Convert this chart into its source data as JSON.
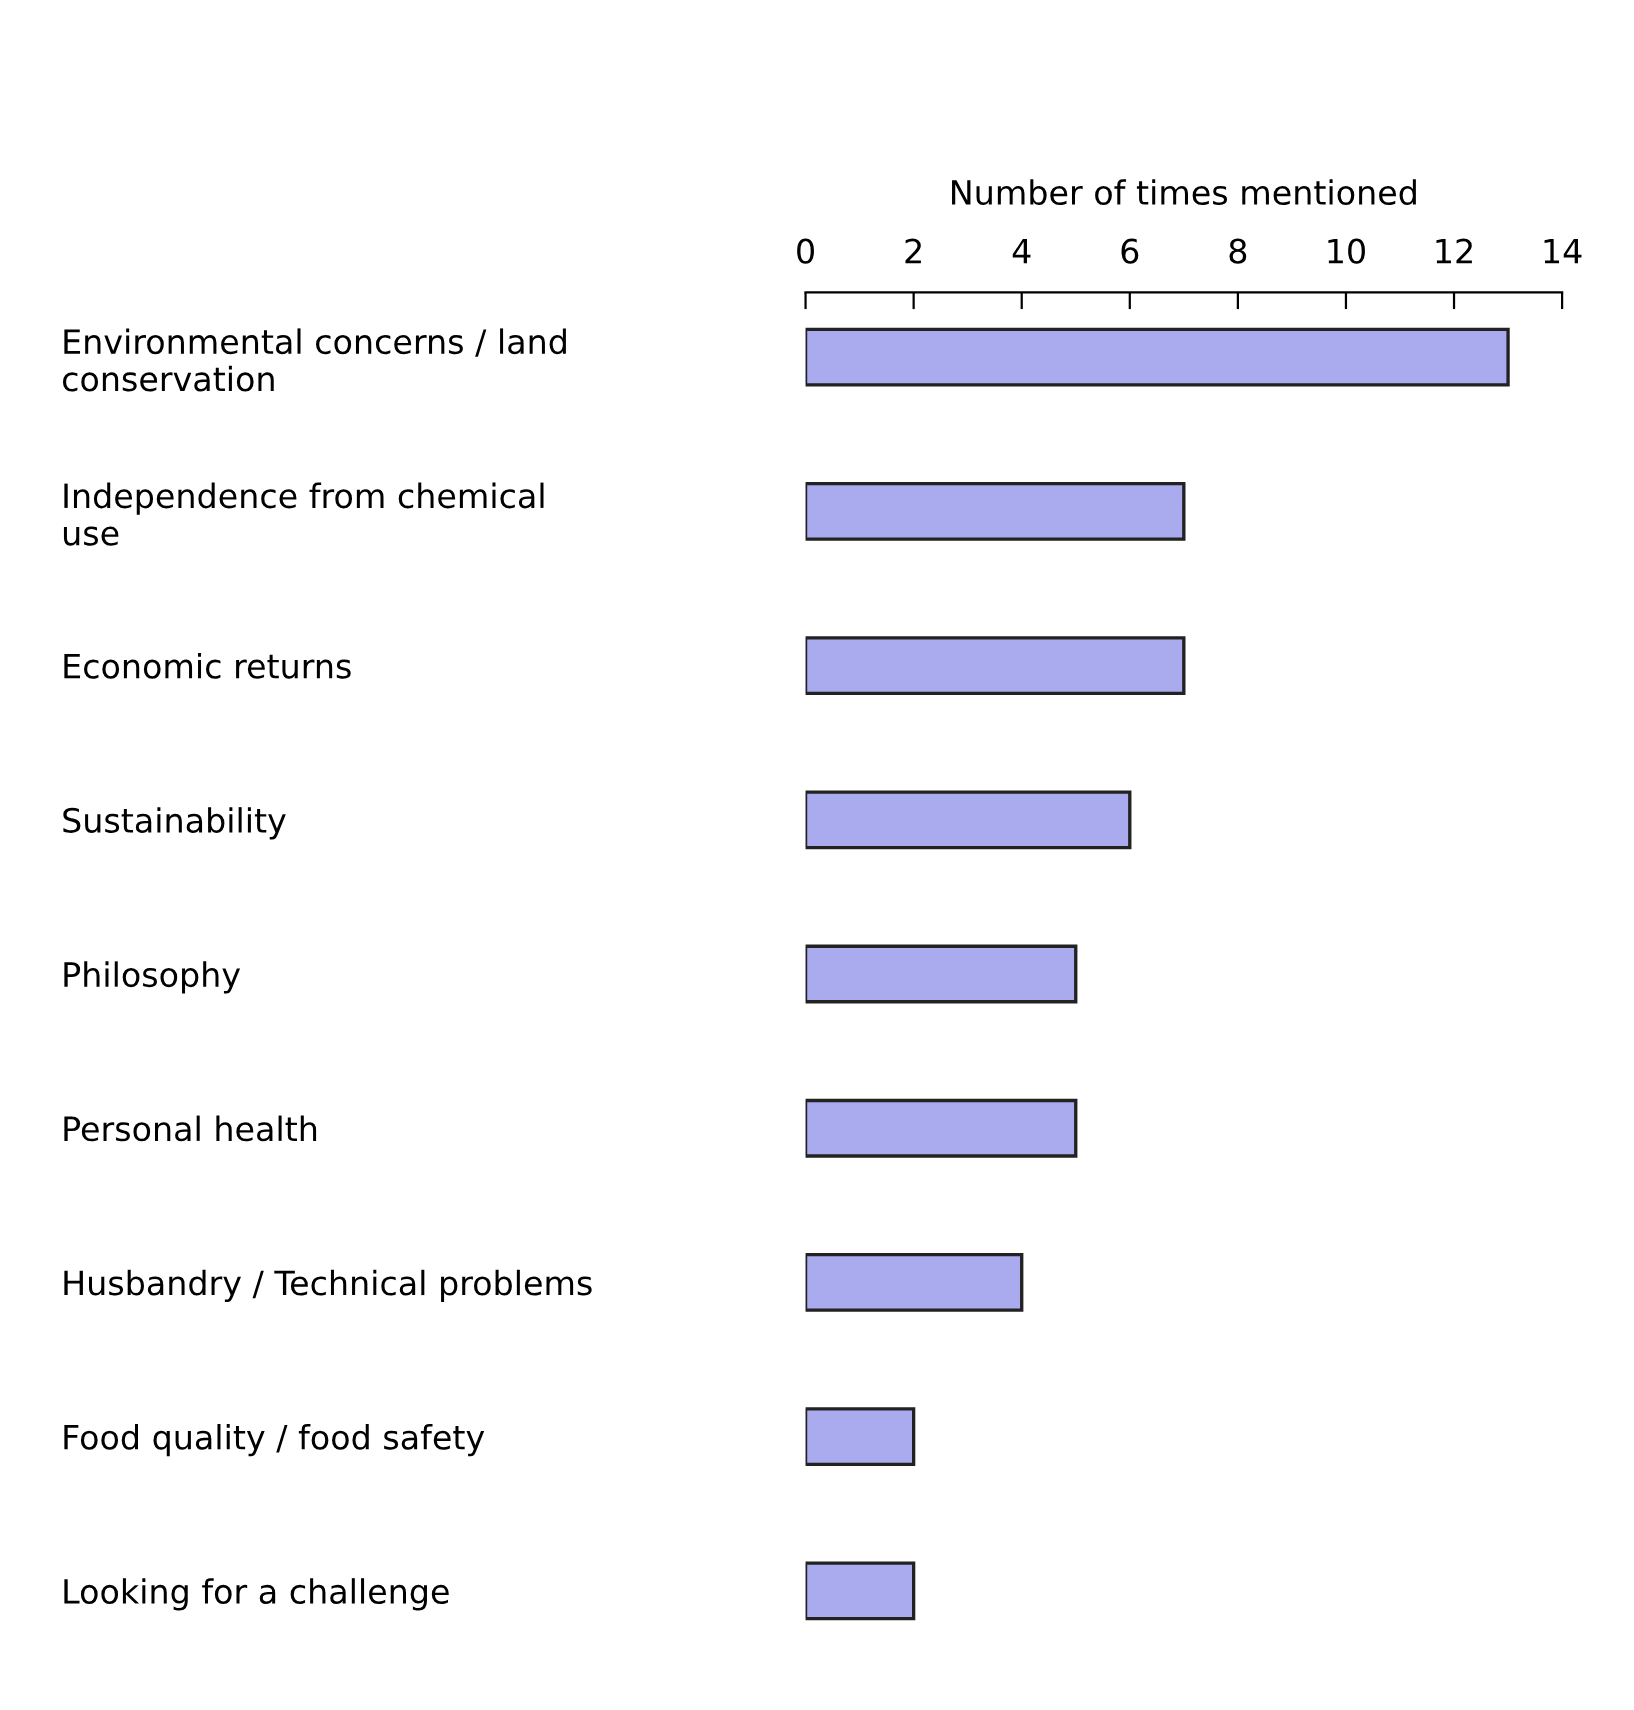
{
  "chart_data": {
    "type": "bar",
    "orientation": "horizontal",
    "xlabel": "Number of times mentioned",
    "categories": [
      "Environmental concerns / land\nconservation",
      "Independence from chemical\nuse",
      "Economic returns",
      "Sustainability",
      "Philosophy",
      "Personal health",
      "Husbandry / Technical problems",
      "Food quality / food safety",
      "Looking for a challenge"
    ],
    "values": [
      13,
      7,
      7,
      6,
      5,
      5,
      4,
      2,
      2
    ],
    "color": "#aaaaee",
    "xlim": [
      0,
      14
    ],
    "xticks": [
      0,
      2,
      4,
      6,
      8,
      10,
      12,
      14
    ],
    "grid": false
  }
}
